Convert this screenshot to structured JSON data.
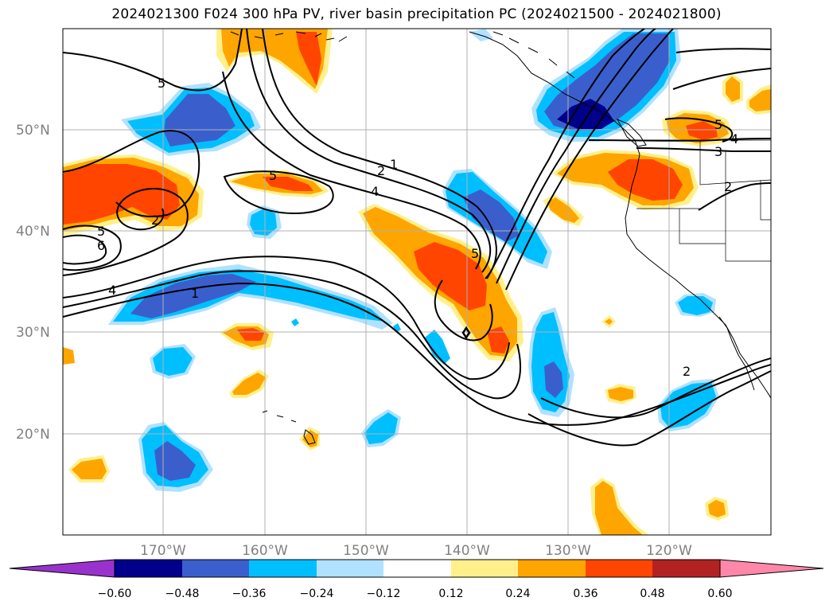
{
  "title": "2024021300 F024 300 hPa PV, river basin precipitation PC (2024021500 - 2024021800)",
  "map": {
    "lat_labels": [
      "50°N",
      "40°N",
      "30°N",
      "20°N"
    ],
    "lon_labels": [
      "170°W",
      "160°W",
      "150°W",
      "140°W",
      "130°W",
      "120°W"
    ],
    "contour_labels": [
      "1",
      "2",
      "4",
      "5",
      "5",
      "2",
      "5",
      "6",
      "4",
      "1",
      "5",
      "5",
      "4",
      "3",
      "2",
      "2"
    ]
  },
  "colorbar": {
    "ticks": [
      "−0.60",
      "−0.48",
      "−0.36",
      "−0.24",
      "−0.12",
      "0.12",
      "0.24",
      "0.36",
      "0.48",
      "0.60"
    ],
    "colors": [
      "#9932cc",
      "#00008b",
      "#3a5fcd",
      "#00bfff",
      "#b0e2ff",
      "#ffffff",
      "#fff08c",
      "#ffa500",
      "#ff4500",
      "#b22222",
      "#ff88aa"
    ]
  },
  "colors": {
    "grid": "#b0b0b0",
    "coast": "#000000",
    "deep_blue": "#00008b",
    "mid_blue": "#3a5fcd",
    "cyan": "#00bfff",
    "light_blue": "#b0e2ff",
    "light_yellow": "#fff08c",
    "orange": "#ffa500",
    "red_orange": "#ff4500",
    "dark_red": "#b22222"
  }
}
